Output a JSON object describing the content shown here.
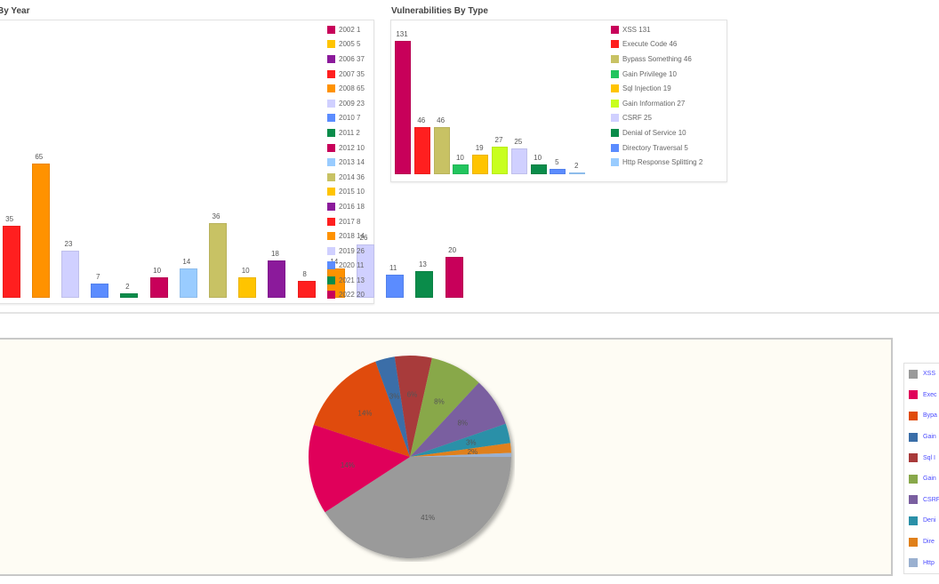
{
  "panels": {
    "by_year": {
      "title": "Vulnerabilities By Year",
      "visible_title": "By Year"
    },
    "by_type": {
      "title": "Vulnerabilities By Type"
    }
  },
  "chart_data": [
    {
      "type": "bar",
      "title": "Vulnerabilities By Year",
      "categories": [
        "2002",
        "2005",
        "2006",
        "2007",
        "2008",
        "2009",
        "2010",
        "2011",
        "2012",
        "2013",
        "2014",
        "2015",
        "2016",
        "2017",
        "2018",
        "2019",
        "2020",
        "2021",
        "2022"
      ],
      "values": [
        1,
        5,
        37,
        35,
        65,
        23,
        7,
        2,
        10,
        14,
        36,
        10,
        18,
        8,
        14,
        26,
        11,
        13,
        20
      ],
      "colors": [
        "#c8005a",
        "#ffc400",
        "#8b1a9b",
        "#ff1f1f",
        "#ff9200",
        "#d0d0ff",
        "#5b8cff",
        "#0a8c4a",
        "#c8005a",
        "#99ccff",
        "#c8c264",
        "#ffc400",
        "#8b1a9b",
        "#ff1f1f",
        "#ff9200",
        "#d0d0ff",
        "#5b8cff",
        "#0a8c4a",
        "#c8005a"
      ],
      "legend": [
        "2002 1",
        "2005 5",
        "2006 37",
        "2007 35",
        "2008 65",
        "2009 23",
        "2010 7",
        "2011 2",
        "2012 10",
        "2013 14",
        "2014 36",
        "2015 10",
        "2016 18",
        "2017 8",
        "2018 14",
        "2019 26",
        "2020 11",
        "2021 13",
        "2022 20"
      ],
      "legend_position": "right",
      "grid": false
    },
    {
      "type": "bar",
      "title": "Vulnerabilities By Type",
      "categories": [
        "XSS",
        "Execute Code",
        "Bypass Something",
        "Gain Privilege",
        "Sql Injection",
        "Gain Information",
        "CSRF",
        "Denial of Service",
        "Directory Traversal",
        "Http Response Splitting"
      ],
      "values": [
        131,
        46,
        46,
        10,
        19,
        27,
        25,
        10,
        5,
        2
      ],
      "colors": [
        "#c8005a",
        "#ff1f1f",
        "#c8c264",
        "#22c55e",
        "#ffc400",
        "#c8ff1e",
        "#d0d0ff",
        "#0a8c4a",
        "#5b8cff",
        "#99ccff"
      ],
      "legend": [
        "XSS 131",
        "Execute Code 46",
        "Bypass Something 46",
        "Gain Privilege 10",
        "Sql Injection 19",
        "Gain Information 27",
        "CSRF 25",
        "Denial of Service 10",
        "Directory Traversal 5",
        "Http Response Splitting 2"
      ],
      "legend_position": "right",
      "grid": false
    },
    {
      "type": "pie",
      "title": "",
      "categories": [
        "XSS",
        "Execute Code",
        "Bypass Something",
        "Gain Privilege",
        "Sql Injection",
        "Gain Information",
        "CSRF",
        "Denial of Service",
        "Directory Traversal",
        "Http Response Splitting"
      ],
      "values": [
        131,
        46,
        46,
        10,
        19,
        27,
        25,
        10,
        5,
        2
      ],
      "percent_labels": [
        "41%",
        "14%",
        "14%",
        "3%",
        "6%",
        "8%",
        "8%",
        "3%",
        "2%",
        "1%"
      ],
      "colors": [
        "#9a9a9a",
        "#e0005a",
        "#e04b0a",
        "#3a6ea8",
        "#a83a3a",
        "#88a84a",
        "#7a5fa0",
        "#2a90a8",
        "#e0801a",
        "#9ab0d0"
      ],
      "legend_labels_truncated": [
        "XSS",
        "Exec",
        "Bypa",
        "Gain",
        "Sql I",
        "Gain",
        "CSRF",
        "Deni",
        "Dire",
        "Http"
      ],
      "legend_position": "right"
    }
  ]
}
